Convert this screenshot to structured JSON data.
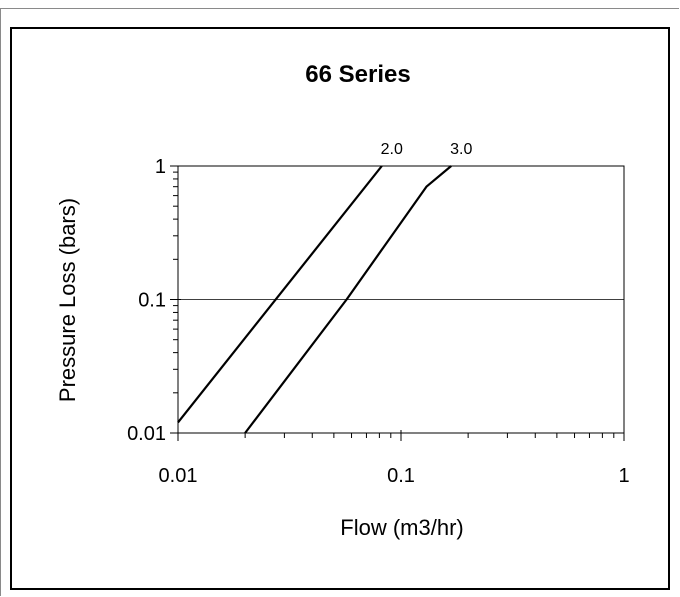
{
  "chart_data": {
    "type": "line",
    "title": "66 Series",
    "xlabel": "Flow  (m3/hr)",
    "ylabel": "Pressure Loss (bars)",
    "x_scale": "log",
    "y_scale": "log",
    "xlim": [
      0.01,
      1
    ],
    "ylim": [
      0.01,
      1
    ],
    "x_ticks": [
      "0.01",
      "0.1",
      "1"
    ],
    "y_ticks": [
      "1",
      "0.1",
      "0.01"
    ],
    "gridlines_y": [
      0.1
    ],
    "series": [
      {
        "name": "2.0",
        "x": [
          0.01,
          0.082
        ],
        "y": [
          0.012,
          1
        ]
      },
      {
        "name": "3.0",
        "x": [
          0.02,
          0.057,
          0.13,
          0.168
        ],
        "y": [
          0.01,
          0.1,
          0.7,
          1
        ]
      }
    ]
  }
}
